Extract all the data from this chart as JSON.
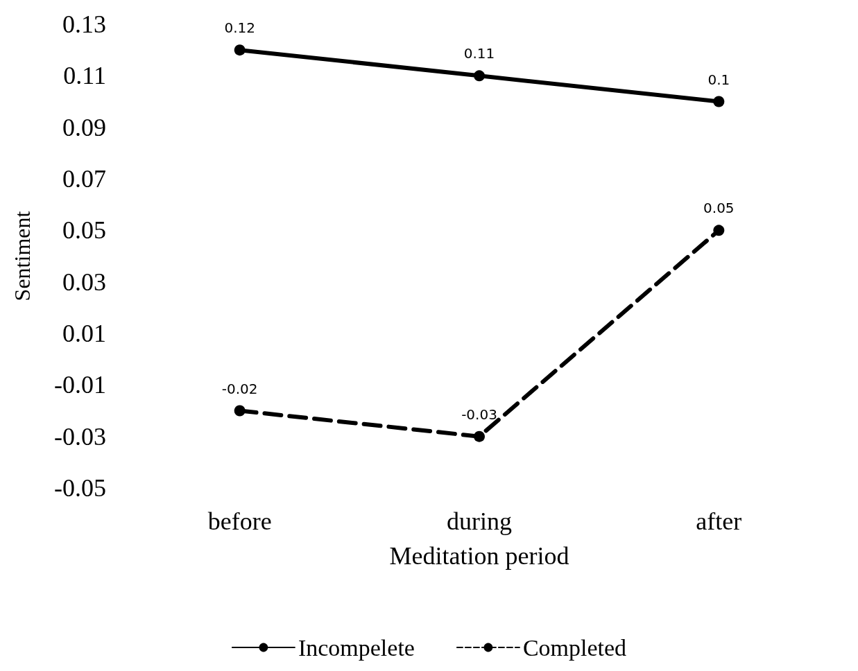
{
  "chart_data": {
    "type": "line",
    "xlabel": "Meditation period",
    "ylabel": "Sentiment",
    "categories": [
      "before",
      "during",
      "after"
    ],
    "series": [
      {
        "name": "Incompelete",
        "color": "#000000",
        "line_style": "solid",
        "values": [
          0.12,
          0.11,
          0.1
        ]
      },
      {
        "name": "Completed",
        "color": "#000000",
        "line_style": "dashed",
        "values": [
          -0.02,
          -0.03,
          0.05
        ]
      }
    ],
    "ylim": [
      -0.05,
      0.13
    ],
    "yticks": [
      -0.05,
      -0.03,
      -0.01,
      0.01,
      0.03,
      0.05,
      0.07,
      0.09,
      0.11,
      0.13
    ],
    "data_labels": true,
    "grid": false,
    "legend": "bottom",
    "marker": "circle"
  }
}
